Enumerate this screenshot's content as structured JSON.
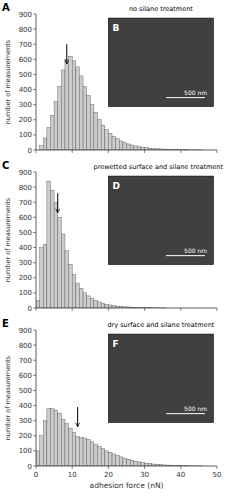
{
  "chart_data": [
    {
      "type": "histogram",
      "title": "no silane treatment",
      "annotations": [
        "A",
        "B",
        "500 nm"
      ],
      "arrow": {
        "x": 8.5,
        "y_from": 700,
        "y_to": 570
      },
      "ylabel": "number of measurements",
      "color": "#cccccc",
      "grid": false,
      "tick_labels": "y",
      "xlim": [
        0,
        50
      ],
      "xticks": [
        0,
        10,
        20,
        30,
        40,
        50
      ],
      "ylim": [
        0,
        900
      ],
      "yticks": [
        0,
        100,
        200,
        300,
        400,
        500,
        600,
        700,
        800,
        900
      ],
      "bins": [
        0,
        1,
        2,
        3,
        4,
        5,
        6,
        7,
        8,
        9,
        10,
        11,
        12,
        13,
        14,
        15,
        16,
        17,
        18,
        19,
        20,
        21,
        22,
        23,
        24,
        25,
        26,
        27,
        28,
        29,
        30,
        31,
        32,
        33,
        34,
        35,
        36,
        37,
        38,
        39,
        40,
        41,
        42,
        43,
        44,
        45,
        46,
        47,
        48,
        49,
        50
      ],
      "values": [
        0,
        30,
        80,
        150,
        230,
        320,
        420,
        530,
        600,
        620,
        590,
        550,
        490,
        420,
        360,
        300,
        250,
        200,
        165,
        135,
        110,
        90,
        75,
        60,
        50,
        40,
        33,
        27,
        22,
        18,
        15,
        12,
        10,
        8,
        7,
        6,
        5,
        4,
        3,
        3,
        2,
        2,
        1,
        1,
        1,
        1,
        0,
        0,
        0,
        0
      ]
    },
    {
      "type": "histogram",
      "title": "prewetted surface and silane treatment",
      "annotations": [
        "C",
        "D",
        "500 nm"
      ],
      "arrow": {
        "x": 6.0,
        "y_from": 760,
        "y_to": 630
      },
      "ylabel": "number of measurements",
      "color": "#cccccc",
      "grid": false,
      "tick_labels": "y",
      "xlim": [
        0,
        50
      ],
      "xticks": [
        0,
        10,
        20,
        30,
        40,
        50
      ],
      "ylim": [
        0,
        900
      ],
      "yticks": [
        0,
        100,
        200,
        300,
        400,
        500,
        600,
        700,
        800,
        900
      ],
      "bins": [
        0,
        1,
        2,
        3,
        4,
        5,
        6,
        7,
        8,
        9,
        10,
        11,
        12,
        13,
        14,
        15,
        16,
        17,
        18,
        19,
        20,
        21,
        22,
        23,
        24,
        25,
        26,
        27,
        28,
        29,
        30,
        31,
        32,
        33,
        34,
        35,
        36,
        37,
        38,
        39,
        40,
        41,
        42,
        43,
        44,
        45,
        46,
        47,
        48,
        49,
        50
      ],
      "values": [
        50,
        400,
        420,
        840,
        780,
        700,
        600,
        490,
        380,
        290,
        220,
        165,
        130,
        100,
        80,
        65,
        50,
        40,
        32,
        25,
        20,
        16,
        13,
        10,
        8,
        7,
        5,
        4,
        3,
        3,
        2,
        2,
        1,
        1,
        1,
        1,
        0,
        0,
        0,
        0,
        0,
        0,
        0,
        0,
        0,
        0,
        0,
        0,
        0,
        0
      ]
    },
    {
      "type": "histogram",
      "title": "dry surface and silane treatment",
      "annotations": [
        "E",
        "F",
        "500 nm"
      ],
      "arrow": {
        "x": 11.5,
        "y_from": 390,
        "y_to": 260
      },
      "xlabel": "adhesion force (nN)",
      "ylabel": "number of measurements",
      "color": "#cccccc",
      "grid": false,
      "xlim": [
        0,
        50
      ],
      "xticks": [
        0,
        10,
        20,
        30,
        40,
        50
      ],
      "ylim": [
        0,
        900
      ],
      "yticks": [
        0,
        100,
        200,
        300,
        400,
        500,
        600,
        700,
        800,
        900
      ],
      "bins": [
        0,
        1,
        2,
        3,
        4,
        5,
        6,
        7,
        8,
        9,
        10,
        11,
        12,
        13,
        14,
        15,
        16,
        17,
        18,
        19,
        20,
        21,
        22,
        23,
        24,
        25,
        26,
        27,
        28,
        29,
        30,
        31,
        32,
        33,
        34,
        35,
        36,
        37,
        38,
        39,
        40,
        41,
        42,
        43,
        44,
        45,
        46,
        47,
        48,
        49,
        50
      ],
      "values": [
        100,
        200,
        300,
        380,
        380,
        370,
        350,
        310,
        280,
        250,
        220,
        195,
        190,
        185,
        175,
        160,
        145,
        130,
        115,
        100,
        90,
        80,
        70,
        60,
        52,
        45,
        38,
        32,
        27,
        23,
        19,
        16,
        13,
        11,
        9,
        7,
        6,
        5,
        4,
        3,
        2,
        2,
        1,
        1,
        1,
        1,
        0,
        0,
        0,
        0
      ]
    }
  ]
}
